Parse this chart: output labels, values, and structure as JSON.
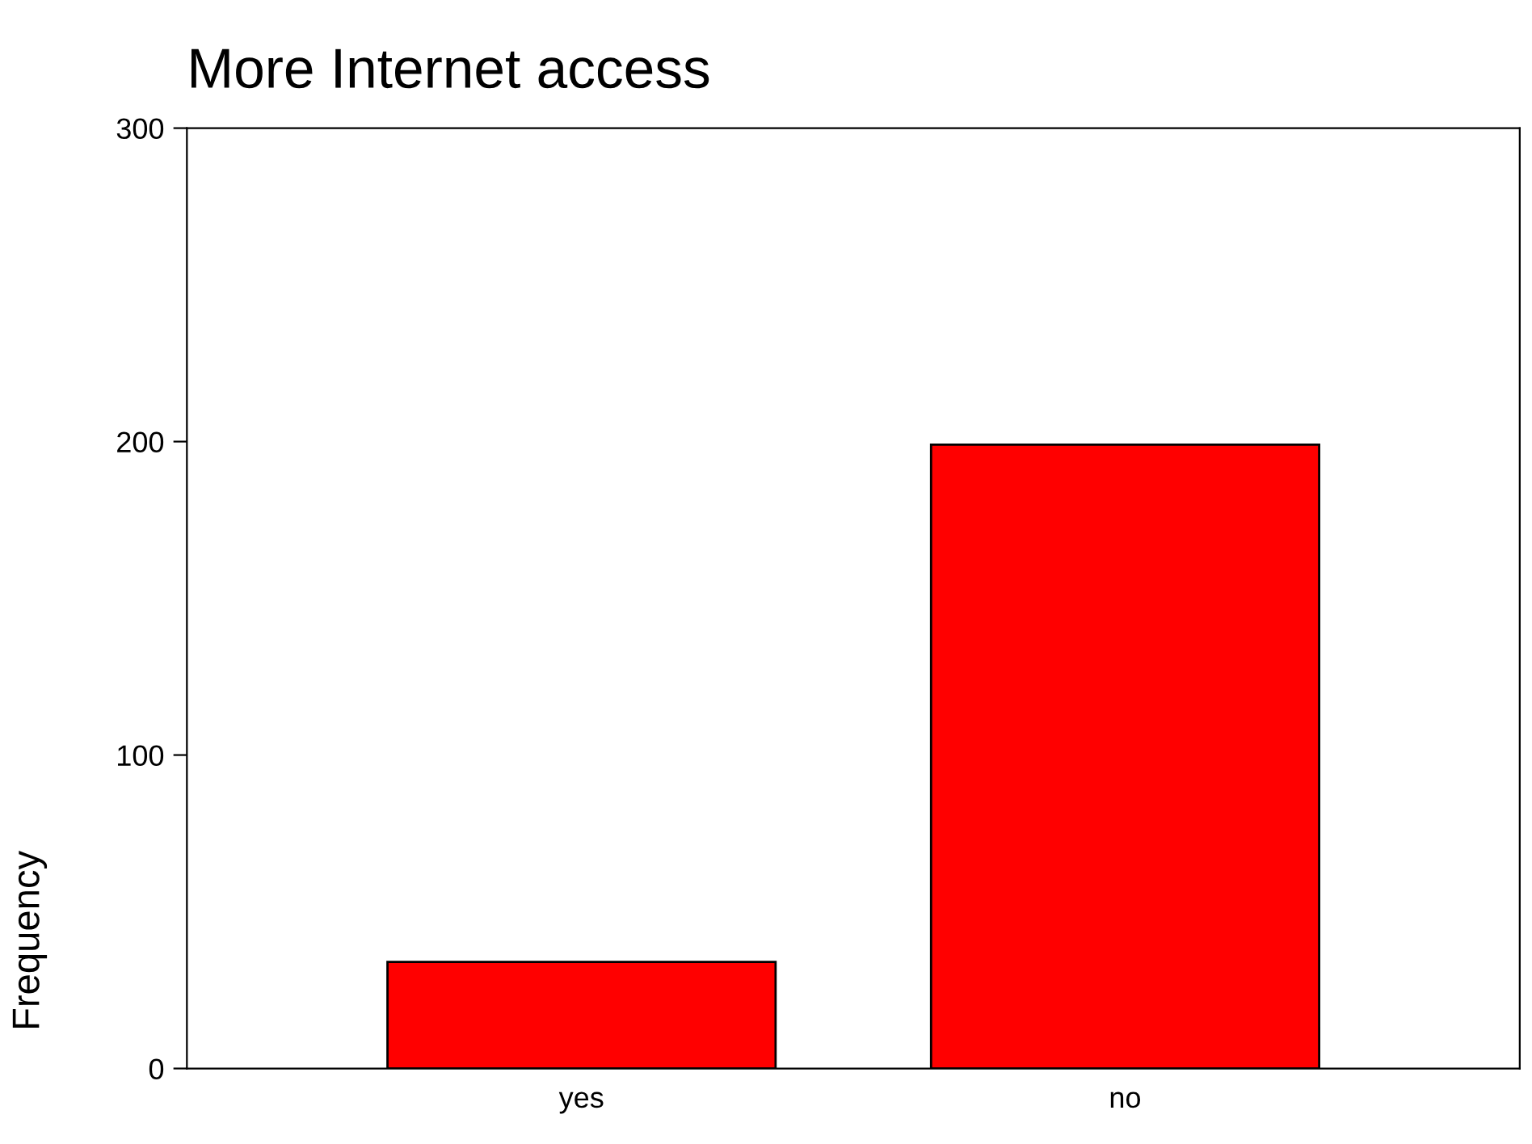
{
  "chart_data": {
    "type": "bar",
    "title": "More Internet access",
    "ylabel": "Frequency",
    "categories": [
      "yes",
      "no"
    ],
    "values": [
      34,
      199
    ],
    "color": "#ff0000",
    "ylim": [
      0,
      300
    ],
    "yticks": [
      0,
      100,
      200,
      300
    ],
    "grid": false,
    "legend": false
  }
}
